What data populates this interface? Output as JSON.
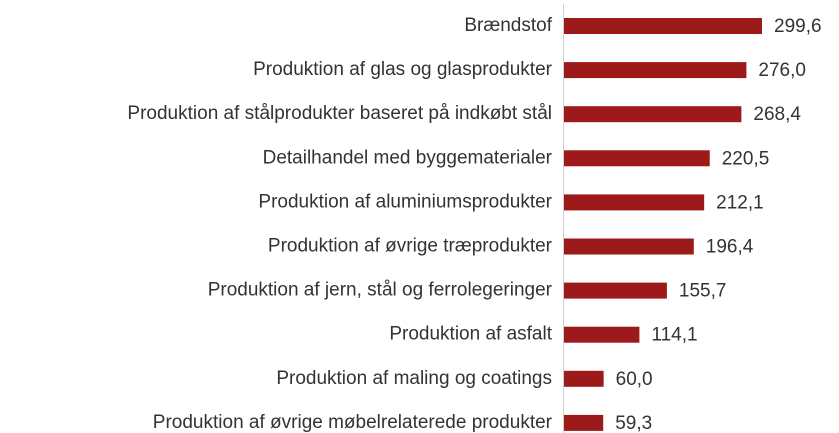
{
  "chart_data": {
    "type": "bar",
    "orientation": "horizontal",
    "categories": [
      "Brændstof",
      "Produktion af glas og glasprodukter",
      "Produktion af stålprodukter baseret på indkøbt stål",
      "Detailhandel med byggematerialer",
      "Produktion af aluminiumsprodukter",
      "Produktion af øvrige træprodukter",
      "Produktion af jern, stål og ferrolegeringer",
      "Produktion af asfalt",
      "Produktion af maling og coatings",
      "Produktion af øvrige møbelrelaterede produkter"
    ],
    "values": [
      299.6,
      276.0,
      268.4,
      220.5,
      212.1,
      196.4,
      155.7,
      114.1,
      60.0,
      59.3
    ],
    "value_labels": [
      "299,6",
      "276,0",
      "268,4",
      "220,5",
      "212,1",
      "196,4",
      "155,7",
      "114,1",
      "60,0",
      "59,3"
    ],
    "color": "#9c1a1a"
  }
}
